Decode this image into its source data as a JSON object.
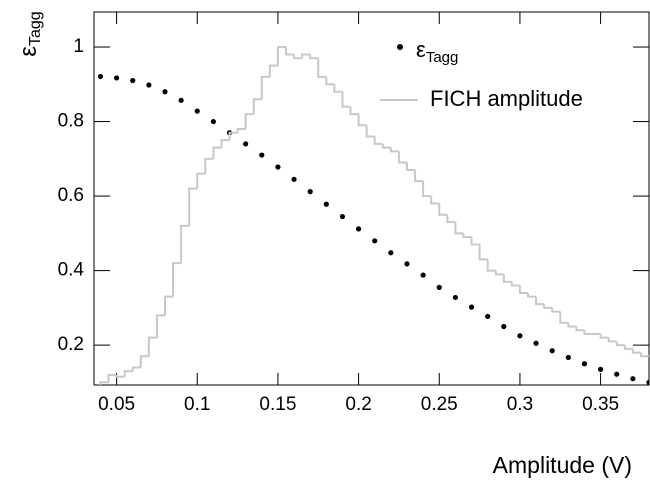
{
  "chart_data": {
    "type": "scatter",
    "xlabel": "Amplitude (V)",
    "ylabel": {
      "symbol": "ε",
      "subscript": "Tagg"
    },
    "xlim": [
      0.036,
      0.38
    ],
    "ylim": [
      0.093,
      1.094
    ],
    "xticks": [
      0.05,
      0.1,
      0.15,
      0.2,
      0.25,
      0.3,
      0.35
    ],
    "yticks": [
      0.2,
      0.4,
      0.6,
      0.8,
      1
    ],
    "series": [
      {
        "type": "points",
        "name": {
          "symbol": "ε",
          "subscript": "Tagg"
        },
        "color": "#000000",
        "x": [
          0.04,
          0.05,
          0.06,
          0.07,
          0.08,
          0.09,
          0.1,
          0.11,
          0.12,
          0.13,
          0.14,
          0.15,
          0.16,
          0.17,
          0.18,
          0.19,
          0.2,
          0.21,
          0.22,
          0.23,
          0.24,
          0.25,
          0.26,
          0.27,
          0.28,
          0.29,
          0.3,
          0.31,
          0.32,
          0.33,
          0.34,
          0.35,
          0.36,
          0.37,
          0.38
        ],
        "values": [
          0.921,
          0.917,
          0.91,
          0.898,
          0.88,
          0.857,
          0.828,
          0.8,
          0.77,
          0.74,
          0.71,
          0.678,
          0.645,
          0.612,
          0.578,
          0.545,
          0.512,
          0.48,
          0.448,
          0.418,
          0.388,
          0.355,
          0.328,
          0.302,
          0.277,
          0.25,
          0.225,
          0.205,
          0.185,
          0.167,
          0.15,
          0.135,
          0.122,
          0.11,
          0.1
        ]
      },
      {
        "type": "histogram",
        "name": "FICH amplitude",
        "color": "#c8c8c8",
        "bins": [
          0.04,
          0.045,
          0.05,
          0.055,
          0.06,
          0.065,
          0.07,
          0.075,
          0.08,
          0.085,
          0.09,
          0.095,
          0.1,
          0.105,
          0.11,
          0.115,
          0.12,
          0.125,
          0.13,
          0.135,
          0.14,
          0.145,
          0.15,
          0.155,
          0.16,
          0.165,
          0.17,
          0.175,
          0.18,
          0.185,
          0.19,
          0.195,
          0.2,
          0.205,
          0.21,
          0.215,
          0.22,
          0.225,
          0.23,
          0.235,
          0.24,
          0.245,
          0.25,
          0.255,
          0.26,
          0.265,
          0.27,
          0.275,
          0.28,
          0.285,
          0.29,
          0.295,
          0.3,
          0.305,
          0.31,
          0.315,
          0.32,
          0.325,
          0.33,
          0.335,
          0.34,
          0.345,
          0.35,
          0.355,
          0.36,
          0.365,
          0.37,
          0.375,
          0.38
        ],
        "values": [
          0.1,
          0.12,
          0.115,
          0.13,
          0.14,
          0.17,
          0.22,
          0.28,
          0.33,
          0.42,
          0.52,
          0.62,
          0.66,
          0.7,
          0.73,
          0.75,
          0.77,
          0.78,
          0.82,
          0.86,
          0.92,
          0.95,
          1.0,
          0.98,
          0.97,
          0.98,
          0.97,
          0.92,
          0.9,
          0.88,
          0.84,
          0.82,
          0.79,
          0.76,
          0.74,
          0.73,
          0.72,
          0.69,
          0.67,
          0.64,
          0.6,
          0.58,
          0.55,
          0.53,
          0.5,
          0.49,
          0.47,
          0.43,
          0.4,
          0.39,
          0.37,
          0.36,
          0.34,
          0.33,
          0.31,
          0.3,
          0.29,
          0.26,
          0.25,
          0.24,
          0.23,
          0.23,
          0.22,
          0.21,
          0.2,
          0.19,
          0.18,
          0.17
        ]
      }
    ]
  }
}
